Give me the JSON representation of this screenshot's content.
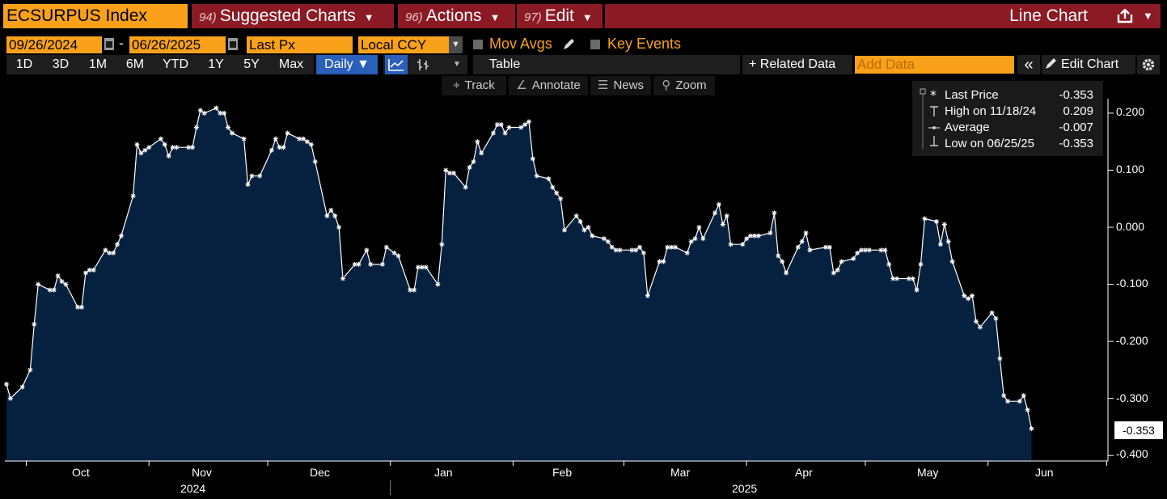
{
  "header": {
    "ticker": "ECSURPUS Index",
    "suggested": {
      "num": "94)",
      "label": "Suggested Charts"
    },
    "actions": {
      "num": "96)",
      "label": "Actions"
    },
    "edit": {
      "num": "97)",
      "label": "Edit"
    },
    "chart_type": "Line Chart"
  },
  "params": {
    "start_date": "09/26/2024",
    "dash": "-",
    "end_date": "06/26/2025",
    "field": "Last Px",
    "currency": "Local CCY",
    "mov_avgs": "Mov Avgs",
    "key_events": "Key Events"
  },
  "toolbar": {
    "periods": [
      "1D",
      "3D",
      "1M",
      "6M",
      "YTD",
      "1Y",
      "5Y",
      "Max"
    ],
    "frequency": "Daily ▼",
    "table": "Table",
    "related": "+ Related Data",
    "add_data_placeholder": "Add Data",
    "collapse": "«",
    "edit_chart": "Edit Chart"
  },
  "tools": {
    "track": "Track",
    "annotate": "Annotate",
    "news": "News",
    "zoom": "Zoom"
  },
  "legend": {
    "last_label": "Last Price",
    "last_value": "-0.353",
    "high_label": "High on 11/18/24",
    "high_value": "0.209",
    "avg_label": "Average",
    "avg_value": "-0.007",
    "low_label": "Low on 06/25/25",
    "low_value": "-0.353"
  },
  "colors": {
    "accent": "#f9a11b",
    "brand_red": "#8b1a24",
    "area": "#06203f",
    "line": "#ffffff"
  },
  "chart_data": {
    "type": "area",
    "title": "ECSURPUS Index",
    "ylim": [
      -0.4,
      0.25
    ],
    "yticks": [
      "0.200",
      "0.100",
      "0.000",
      "-0.100",
      "-0.200",
      "-0.300",
      "-0.400"
    ],
    "ytick_values": [
      0.2,
      0.1,
      0.0,
      -0.1,
      -0.2,
      -0.3,
      -0.4
    ],
    "x_start": "2024-09-26",
    "x_end": "2025-06-26",
    "month_labels": [
      "Oct",
      "Nov",
      "Dec",
      "Jan",
      "Feb",
      "Mar",
      "Apr",
      "May",
      "Jun"
    ],
    "year_labels": [
      "2024",
      "2025"
    ],
    "last_value_label": "-0.353",
    "series": [
      {
        "name": "Last Price",
        "points": [
          [
            "2024-09-26",
            -0.275
          ],
          [
            "2024-09-27",
            -0.3
          ],
          [
            "2024-09-30",
            -0.28
          ],
          [
            "2024-10-02",
            -0.25
          ],
          [
            "2024-10-03",
            -0.17
          ],
          [
            "2024-10-04",
            -0.1
          ],
          [
            "2024-10-07",
            -0.11
          ],
          [
            "2024-10-08",
            -0.11
          ],
          [
            "2024-10-09",
            -0.085
          ],
          [
            "2024-10-10",
            -0.095
          ],
          [
            "2024-10-11",
            -0.1
          ],
          [
            "2024-10-14",
            -0.14
          ],
          [
            "2024-10-15",
            -0.14
          ],
          [
            "2024-10-16",
            -0.08
          ],
          [
            "2024-10-17",
            -0.075
          ],
          [
            "2024-10-18",
            -0.075
          ],
          [
            "2024-10-21",
            -0.04
          ],
          [
            "2024-10-22",
            -0.045
          ],
          [
            "2024-10-23",
            -0.045
          ],
          [
            "2024-10-24",
            -0.03
          ],
          [
            "2024-10-25",
            -0.015
          ],
          [
            "2024-10-28",
            0.055
          ],
          [
            "2024-10-29",
            0.145
          ],
          [
            "2024-10-30",
            0.13
          ],
          [
            "2024-10-31",
            0.135
          ],
          [
            "2024-11-01",
            0.14
          ],
          [
            "2024-11-04",
            0.155
          ],
          [
            "2024-11-05",
            0.145
          ],
          [
            "2024-11-06",
            0.125
          ],
          [
            "2024-11-07",
            0.14
          ],
          [
            "2024-11-08",
            0.14
          ],
          [
            "2024-11-11",
            0.14
          ],
          [
            "2024-11-12",
            0.14
          ],
          [
            "2024-11-13",
            0.175
          ],
          [
            "2024-11-14",
            0.205
          ],
          [
            "2024-11-15",
            0.2
          ],
          [
            "2024-11-18",
            0.209
          ],
          [
            "2024-11-19",
            0.2
          ],
          [
            "2024-11-20",
            0.2
          ],
          [
            "2024-11-21",
            0.175
          ],
          [
            "2024-11-22",
            0.165
          ],
          [
            "2024-11-25",
            0.155
          ],
          [
            "2024-11-26",
            0.075
          ],
          [
            "2024-11-27",
            0.09
          ],
          [
            "2024-11-29",
            0.09
          ],
          [
            "2024-12-02",
            0.135
          ],
          [
            "2024-12-03",
            0.155
          ],
          [
            "2024-12-04",
            0.14
          ],
          [
            "2024-12-05",
            0.14
          ],
          [
            "2024-12-06",
            0.165
          ],
          [
            "2024-12-09",
            0.155
          ],
          [
            "2024-12-10",
            0.155
          ],
          [
            "2024-12-11",
            0.15
          ],
          [
            "2024-12-12",
            0.145
          ],
          [
            "2024-12-13",
            0.115
          ],
          [
            "2024-12-16",
            0.02
          ],
          [
            "2024-12-17",
            0.03
          ],
          [
            "2024-12-18",
            0.02
          ],
          [
            "2024-12-19",
            0.0
          ],
          [
            "2024-12-20",
            -0.09
          ],
          [
            "2024-12-23",
            -0.065
          ],
          [
            "2024-12-24",
            -0.065
          ],
          [
            "2024-12-26",
            -0.04
          ],
          [
            "2024-12-27",
            -0.065
          ],
          [
            "2024-12-30",
            -0.065
          ],
          [
            "2024-12-31",
            -0.035
          ],
          [
            "2025-01-02",
            -0.045
          ],
          [
            "2025-01-03",
            -0.05
          ],
          [
            "2025-01-06",
            -0.11
          ],
          [
            "2025-01-07",
            -0.11
          ],
          [
            "2025-01-08",
            -0.07
          ],
          [
            "2025-01-09",
            -0.07
          ],
          [
            "2025-01-10",
            -0.07
          ],
          [
            "2025-01-13",
            -0.1
          ],
          [
            "2025-01-14",
            -0.03
          ],
          [
            "2025-01-15",
            0.1
          ],
          [
            "2025-01-16",
            0.095
          ],
          [
            "2025-01-17",
            0.095
          ],
          [
            "2025-01-20",
            0.07
          ],
          [
            "2025-01-21",
            0.105
          ],
          [
            "2025-01-22",
            0.115
          ],
          [
            "2025-01-23",
            0.15
          ],
          [
            "2025-01-24",
            0.13
          ],
          [
            "2025-01-27",
            0.165
          ],
          [
            "2025-01-28",
            0.18
          ],
          [
            "2025-01-29",
            0.18
          ],
          [
            "2025-01-30",
            0.165
          ],
          [
            "2025-01-31",
            0.175
          ],
          [
            "2025-02-03",
            0.175
          ],
          [
            "2025-02-04",
            0.18
          ],
          [
            "2025-02-05",
            0.185
          ],
          [
            "2025-02-06",
            0.12
          ],
          [
            "2025-02-07",
            0.09
          ],
          [
            "2025-02-10",
            0.085
          ],
          [
            "2025-02-11",
            0.07
          ],
          [
            "2025-02-12",
            0.06
          ],
          [
            "2025-02-13",
            0.05
          ],
          [
            "2025-02-14",
            -0.005
          ],
          [
            "2025-02-17",
            0.02
          ],
          [
            "2025-02-18",
            0.01
          ],
          [
            "2025-02-19",
            -0.005
          ],
          [
            "2025-02-20",
            0.0
          ],
          [
            "2025-02-21",
            -0.015
          ],
          [
            "2025-02-24",
            -0.02
          ],
          [
            "2025-02-25",
            -0.025
          ],
          [
            "2025-02-26",
            -0.035
          ],
          [
            "2025-02-27",
            -0.04
          ],
          [
            "2025-02-28",
            -0.04
          ],
          [
            "2025-03-03",
            -0.04
          ],
          [
            "2025-03-04",
            -0.04
          ],
          [
            "2025-03-05",
            -0.035
          ],
          [
            "2025-03-06",
            -0.045
          ],
          [
            "2025-03-07",
            -0.12
          ],
          [
            "2025-03-10",
            -0.06
          ],
          [
            "2025-03-11",
            -0.06
          ],
          [
            "2025-03-12",
            -0.035
          ],
          [
            "2025-03-13",
            -0.035
          ],
          [
            "2025-03-14",
            -0.035
          ],
          [
            "2025-03-17",
            -0.045
          ],
          [
            "2025-03-18",
            -0.025
          ],
          [
            "2025-03-19",
            -0.02
          ],
          [
            "2025-03-20",
            0.0
          ],
          [
            "2025-03-21",
            -0.02
          ],
          [
            "2025-03-24",
            0.025
          ],
          [
            "2025-03-25",
            0.04
          ],
          [
            "2025-03-26",
            0.005
          ],
          [
            "2025-03-27",
            0.02
          ],
          [
            "2025-03-28",
            -0.03
          ],
          [
            "2025-03-31",
            -0.03
          ],
          [
            "2025-04-01",
            -0.02
          ],
          [
            "2025-04-02",
            -0.015
          ],
          [
            "2025-04-03",
            -0.015
          ],
          [
            "2025-04-04",
            -0.015
          ],
          [
            "2025-04-07",
            -0.01
          ],
          [
            "2025-04-08",
            0.025
          ],
          [
            "2025-04-09",
            -0.05
          ],
          [
            "2025-04-10",
            -0.06
          ],
          [
            "2025-04-11",
            -0.08
          ],
          [
            "2025-04-14",
            -0.035
          ],
          [
            "2025-04-15",
            -0.025
          ],
          [
            "2025-04-16",
            -0.01
          ],
          [
            "2025-04-17",
            -0.04
          ],
          [
            "2025-04-21",
            -0.035
          ],
          [
            "2025-04-22",
            -0.035
          ],
          [
            "2025-04-23",
            -0.08
          ],
          [
            "2025-04-24",
            -0.075
          ],
          [
            "2025-04-25",
            -0.06
          ],
          [
            "2025-04-28",
            -0.055
          ],
          [
            "2025-04-29",
            -0.045
          ],
          [
            "2025-04-30",
            -0.04
          ],
          [
            "2025-05-01",
            -0.04
          ],
          [
            "2025-05-02",
            -0.04
          ],
          [
            "2025-05-05",
            -0.04
          ],
          [
            "2025-05-06",
            -0.04
          ],
          [
            "2025-05-07",
            -0.065
          ],
          [
            "2025-05-08",
            -0.09
          ],
          [
            "2025-05-09",
            -0.09
          ],
          [
            "2025-05-12",
            -0.09
          ],
          [
            "2025-05-13",
            -0.09
          ],
          [
            "2025-05-14",
            -0.11
          ],
          [
            "2025-05-15",
            -0.065
          ],
          [
            "2025-05-16",
            0.015
          ],
          [
            "2025-05-19",
            0.01
          ],
          [
            "2025-05-20",
            -0.03
          ],
          [
            "2025-05-21",
            0.005
          ],
          [
            "2025-05-22",
            -0.025
          ],
          [
            "2025-05-23",
            -0.06
          ],
          [
            "2025-05-26",
            -0.12
          ],
          [
            "2025-05-27",
            -0.125
          ],
          [
            "2025-05-28",
            -0.12
          ],
          [
            "2025-05-29",
            -0.165
          ],
          [
            "2025-05-30",
            -0.175
          ],
          [
            "2025-06-02",
            -0.15
          ],
          [
            "2025-06-03",
            -0.16
          ],
          [
            "2025-06-04",
            -0.23
          ],
          [
            "2025-06-05",
            -0.295
          ],
          [
            "2025-06-06",
            -0.305
          ],
          [
            "2025-06-09",
            -0.305
          ],
          [
            "2025-06-10",
            -0.295
          ],
          [
            "2025-06-11",
            -0.32
          ],
          [
            "2025-06-12",
            -0.353
          ]
        ]
      }
    ],
    "high": {
      "date": "2024-11-18",
      "value": 0.209
    },
    "low": {
      "date": "2025-06-25",
      "value": -0.353
    },
    "average": -0.007
  }
}
